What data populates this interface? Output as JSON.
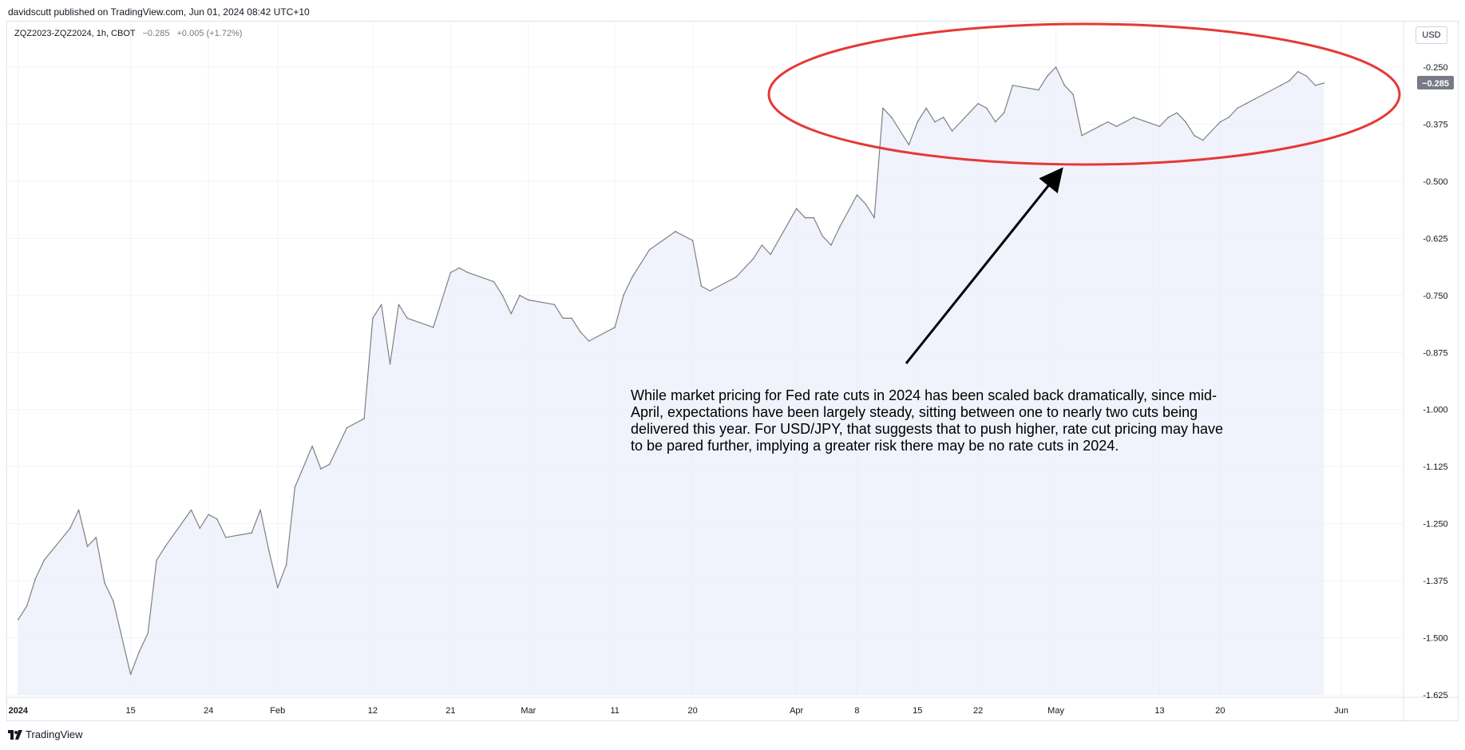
{
  "publisher_line": "davidscutt published on TradingView.com, Jun 01, 2024 08:42 UTC+10",
  "legend": {
    "symbol": "ZQZ2023-ZQZ2024, 1h, CBOT",
    "price": "−0.285",
    "change": "+0.005 (+1.72%)"
  },
  "currency_button": "USD",
  "footer_brand": "TradingView",
  "annotation": "While market pricing for Fed rate cuts in 2024 has been scaled back dramatically, since mid-April, expectations have been largely steady, sitting between one to nearly two cuts being delivered this year. For USD/JPY, that suggests that to push higher, rate cut pricing may have to be pared further, implying a greater risk there may be no rate cuts in 2024.",
  "colors": {
    "line": "#808080",
    "area": "#e9ecfb",
    "ellipse": "#e53935",
    "arrow": "#000000",
    "price_label_bg": "#787b86"
  },
  "chart_data": {
    "type": "area",
    "title": "",
    "xlabel": "",
    "ylabel": "",
    "ylim": [
      -1.625,
      -0.25
    ],
    "y_ticks": [
      "-0.250",
      "-0.375",
      "-0.500",
      "-0.625",
      "-0.750",
      "-0.875",
      "-1.000",
      "-1.125",
      "-1.250",
      "-1.375",
      "-1.500",
      "-1.625"
    ],
    "y_tick_values": [
      -0.25,
      -0.375,
      -0.5,
      -0.625,
      -0.75,
      -0.875,
      -1.0,
      -1.125,
      -1.25,
      -1.375,
      -1.5,
      -1.625
    ],
    "x_ticks": [
      {
        "label": "2024",
        "date": "2024-01-02",
        "bold": true
      },
      {
        "label": "15",
        "date": "2024-01-15"
      },
      {
        "label": "24",
        "date": "2024-01-24"
      },
      {
        "label": "Feb",
        "date": "2024-02-01"
      },
      {
        "label": "12",
        "date": "2024-02-12"
      },
      {
        "label": "21",
        "date": "2024-02-21"
      },
      {
        "label": "Mar",
        "date": "2024-03-01"
      },
      {
        "label": "11",
        "date": "2024-03-11"
      },
      {
        "label": "20",
        "date": "2024-03-20"
      },
      {
        "label": "Apr",
        "date": "2024-04-01"
      },
      {
        "label": "8",
        "date": "2024-04-08"
      },
      {
        "label": "15",
        "date": "2024-04-15"
      },
      {
        "label": "22",
        "date": "2024-04-22"
      },
      {
        "label": "May",
        "date": "2024-05-01"
      },
      {
        "label": "13",
        "date": "2024-05-13"
      },
      {
        "label": "20",
        "date": "2024-05-20"
      },
      {
        "label": "Jun",
        "date": "2024-06-03"
      }
    ],
    "last_price_label": "−0.285",
    "last_value": -0.285,
    "series": [
      {
        "values": [
          [
            "2024-01-02",
            -1.46
          ],
          [
            "2024-01-03",
            -1.43
          ],
          [
            "2024-01-04",
            -1.37
          ],
          [
            "2024-01-05",
            -1.33
          ],
          [
            "2024-01-08",
            -1.26
          ],
          [
            "2024-01-09",
            -1.22
          ],
          [
            "2024-01-10",
            -1.3
          ],
          [
            "2024-01-11",
            -1.28
          ],
          [
            "2024-01-12",
            -1.38
          ],
          [
            "2024-01-13",
            -1.42
          ],
          [
            "2024-01-15",
            -1.58
          ],
          [
            "2024-01-16",
            -1.53
          ],
          [
            "2024-01-17",
            -1.49
          ],
          [
            "2024-01-18",
            -1.33
          ],
          [
            "2024-01-19",
            -1.3
          ],
          [
            "2024-01-22",
            -1.22
          ],
          [
            "2024-01-23",
            -1.26
          ],
          [
            "2024-01-24",
            -1.23
          ],
          [
            "2024-01-25",
            -1.24
          ],
          [
            "2024-01-26",
            -1.28
          ],
          [
            "2024-01-29",
            -1.27
          ],
          [
            "2024-01-30",
            -1.22
          ],
          [
            "2024-01-31",
            -1.31
          ],
          [
            "2024-02-01",
            -1.39
          ],
          [
            "2024-02-02",
            -1.34
          ],
          [
            "2024-02-03",
            -1.17
          ],
          [
            "2024-02-05",
            -1.08
          ],
          [
            "2024-02-06",
            -1.13
          ],
          [
            "2024-02-07",
            -1.12
          ],
          [
            "2024-02-08",
            -1.08
          ],
          [
            "2024-02-09",
            -1.04
          ],
          [
            "2024-02-11",
            -1.02
          ],
          [
            "2024-02-12",
            -0.8
          ],
          [
            "2024-02-13",
            -0.77
          ],
          [
            "2024-02-14",
            -0.9
          ],
          [
            "2024-02-15",
            -0.77
          ],
          [
            "2024-02-16",
            -0.8
          ],
          [
            "2024-02-19",
            -0.82
          ],
          [
            "2024-02-20",
            -0.76
          ],
          [
            "2024-02-21",
            -0.7
          ],
          [
            "2024-02-22",
            -0.69
          ],
          [
            "2024-02-23",
            -0.7
          ],
          [
            "2024-02-26",
            -0.72
          ],
          [
            "2024-02-27",
            -0.75
          ],
          [
            "2024-02-28",
            -0.79
          ],
          [
            "2024-02-29",
            -0.75
          ],
          [
            "2024-03-01",
            -0.76
          ],
          [
            "2024-03-04",
            -0.77
          ],
          [
            "2024-03-05",
            -0.8
          ],
          [
            "2024-03-06",
            -0.8
          ],
          [
            "2024-03-07",
            -0.83
          ],
          [
            "2024-03-08",
            -0.85
          ],
          [
            "2024-03-11",
            -0.82
          ],
          [
            "2024-03-12",
            -0.75
          ],
          [
            "2024-03-13",
            -0.71
          ],
          [
            "2024-03-14",
            -0.68
          ],
          [
            "2024-03-15",
            -0.65
          ],
          [
            "2024-03-18",
            -0.61
          ],
          [
            "2024-03-19",
            -0.62
          ],
          [
            "2024-03-20",
            -0.63
          ],
          [
            "2024-03-21",
            -0.73
          ],
          [
            "2024-03-22",
            -0.74
          ],
          [
            "2024-03-25",
            -0.71
          ],
          [
            "2024-03-26",
            -0.69
          ],
          [
            "2024-03-27",
            -0.67
          ],
          [
            "2024-03-28",
            -0.64
          ],
          [
            "2024-03-29",
            -0.66
          ],
          [
            "2024-04-01",
            -0.56
          ],
          [
            "2024-04-02",
            -0.58
          ],
          [
            "2024-04-03",
            -0.58
          ],
          [
            "2024-04-04",
            -0.62
          ],
          [
            "2024-04-05",
            -0.64
          ],
          [
            "2024-04-06",
            -0.6
          ],
          [
            "2024-04-08",
            -0.53
          ],
          [
            "2024-04-09",
            -0.55
          ],
          [
            "2024-04-10",
            -0.58
          ],
          [
            "2024-04-11",
            -0.34
          ],
          [
            "2024-04-12",
            -0.36
          ],
          [
            "2024-04-14",
            -0.42
          ],
          [
            "2024-04-15",
            -0.37
          ],
          [
            "2024-04-16",
            -0.34
          ],
          [
            "2024-04-17",
            -0.37
          ],
          [
            "2024-04-18",
            -0.36
          ],
          [
            "2024-04-19",
            -0.39
          ],
          [
            "2024-04-22",
            -0.33
          ],
          [
            "2024-04-23",
            -0.34
          ],
          [
            "2024-04-24",
            -0.37
          ],
          [
            "2024-04-25",
            -0.35
          ],
          [
            "2024-04-26",
            -0.29
          ],
          [
            "2024-04-29",
            -0.3
          ],
          [
            "2024-04-30",
            -0.27
          ],
          [
            "2024-05-01",
            -0.25
          ],
          [
            "2024-05-02",
            -0.29
          ],
          [
            "2024-05-03",
            -0.31
          ],
          [
            "2024-05-04",
            -0.4
          ],
          [
            "2024-05-06",
            -0.38
          ],
          [
            "2024-05-07",
            -0.37
          ],
          [
            "2024-05-08",
            -0.38
          ],
          [
            "2024-05-09",
            -0.37
          ],
          [
            "2024-05-10",
            -0.36
          ],
          [
            "2024-05-13",
            -0.38
          ],
          [
            "2024-05-14",
            -0.36
          ],
          [
            "2024-05-15",
            -0.35
          ],
          [
            "2024-05-16",
            -0.37
          ],
          [
            "2024-05-17",
            -0.4
          ],
          [
            "2024-05-18",
            -0.41
          ],
          [
            "2024-05-20",
            -0.37
          ],
          [
            "2024-05-21",
            -0.36
          ],
          [
            "2024-05-22",
            -0.34
          ],
          [
            "2024-05-23",
            -0.33
          ],
          [
            "2024-05-24",
            -0.32
          ],
          [
            "2024-05-27",
            -0.29
          ],
          [
            "2024-05-28",
            -0.28
          ],
          [
            "2024-05-29",
            -0.26
          ],
          [
            "2024-05-30",
            -0.27
          ],
          [
            "2024-05-31",
            -0.29
          ],
          [
            "2024-06-01",
            -0.285
          ]
        ]
      }
    ],
    "grid": true
  }
}
